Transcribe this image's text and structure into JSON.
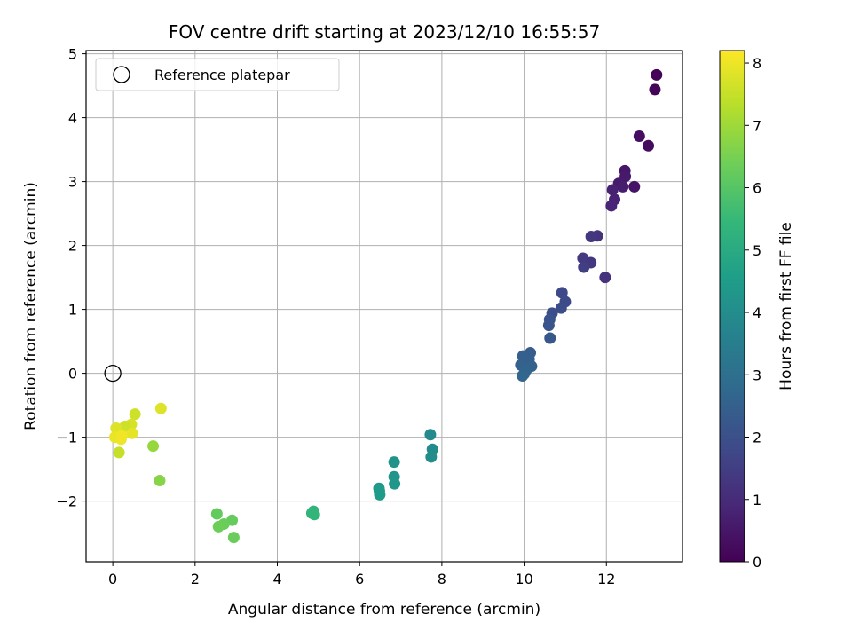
{
  "chart_data": {
    "type": "scatter",
    "title": "FOV centre drift starting at 2023/12/10 16:55:57",
    "xlabel": "Angular distance from reference (arcmin)",
    "ylabel": "Rotation from reference (arcmin)",
    "xlim": [
      -0.65,
      13.85
    ],
    "ylim": [
      -2.95,
      5.05
    ],
    "xticks": [
      0,
      2,
      4,
      6,
      8,
      10,
      12
    ],
    "yticks": [
      -2,
      -1,
      0,
      1,
      2,
      3,
      4,
      5
    ],
    "xtick_labels": [
      "0",
      "2",
      "4",
      "6",
      "8",
      "10",
      "12"
    ],
    "ytick_labels": [
      "−2",
      "−1",
      "0",
      "1",
      "2",
      "3",
      "4",
      "5"
    ],
    "grid": true,
    "legend": {
      "placement": "top-left",
      "entries": [
        "Reference platepar"
      ]
    },
    "reference_point": {
      "x": 0,
      "y": 0,
      "marker": "open-circle"
    },
    "colorbar": {
      "label": "Hours from first FF file",
      "range": [
        0,
        8.2
      ],
      "ticks": [
        0,
        1,
        2,
        3,
        4,
        5,
        6,
        7,
        8
      ],
      "tick_labels": [
        "0",
        "1",
        "2",
        "3",
        "4",
        "5",
        "6",
        "7",
        "8"
      ],
      "colormap": "viridis",
      "stops": [
        "#440154",
        "#482878",
        "#3e4a89",
        "#31688e",
        "#26828e",
        "#1f9e89",
        "#35b779",
        "#6ece58",
        "#b5de2b",
        "#fde725"
      ]
    },
    "points": [
      {
        "x": 13.22,
        "y": 4.67,
        "t": 0.05
      },
      {
        "x": 13.18,
        "y": 4.44,
        "t": 0.1
      },
      {
        "x": 12.8,
        "y": 3.71,
        "t": 0.3
      },
      {
        "x": 13.02,
        "y": 3.56,
        "t": 0.25
      },
      {
        "x": 12.45,
        "y": 3.17,
        "t": 0.5
      },
      {
        "x": 12.46,
        "y": 3.08,
        "t": 0.55
      },
      {
        "x": 12.3,
        "y": 2.97,
        "t": 0.6
      },
      {
        "x": 12.4,
        "y": 2.92,
        "t": 0.65
      },
      {
        "x": 12.68,
        "y": 2.92,
        "t": 0.45
      },
      {
        "x": 12.15,
        "y": 2.87,
        "t": 0.75
      },
      {
        "x": 12.2,
        "y": 2.72,
        "t": 0.8
      },
      {
        "x": 12.12,
        "y": 2.62,
        "t": 0.85
      },
      {
        "x": 11.78,
        "y": 2.15,
        "t": 1.2
      },
      {
        "x": 11.63,
        "y": 2.14,
        "t": 1.3
      },
      {
        "x": 11.43,
        "y": 1.8,
        "t": 1.4
      },
      {
        "x": 11.62,
        "y": 1.73,
        "t": 1.35
      },
      {
        "x": 11.45,
        "y": 1.66,
        "t": 1.5
      },
      {
        "x": 11.97,
        "y": 1.5,
        "t": 1.15
      },
      {
        "x": 10.92,
        "y": 1.26,
        "t": 1.8
      },
      {
        "x": 11.0,
        "y": 1.12,
        "t": 1.85
      },
      {
        "x": 10.9,
        "y": 1.02,
        "t": 1.9
      },
      {
        "x": 10.68,
        "y": 0.94,
        "t": 2.0
      },
      {
        "x": 10.62,
        "y": 0.84,
        "t": 2.1
      },
      {
        "x": 10.6,
        "y": 0.75,
        "t": 2.15
      },
      {
        "x": 10.63,
        "y": 0.55,
        "t": 2.25
      },
      {
        "x": 10.15,
        "y": 0.32,
        "t": 2.4
      },
      {
        "x": 9.97,
        "y": 0.27,
        "t": 2.45
      },
      {
        "x": 10.12,
        "y": 0.22,
        "t": 2.5
      },
      {
        "x": 9.92,
        "y": 0.13,
        "t": 2.55
      },
      {
        "x": 10.18,
        "y": 0.11,
        "t": 2.55
      },
      {
        "x": 10.05,
        "y": 0.05,
        "t": 2.6
      },
      {
        "x": 10.0,
        "y": -0.01,
        "t": 2.65
      },
      {
        "x": 9.96,
        "y": -0.04,
        "t": 2.7
      },
      {
        "x": 7.72,
        "y": -0.96,
        "t": 3.9
      },
      {
        "x": 7.77,
        "y": -1.19,
        "t": 3.95
      },
      {
        "x": 7.74,
        "y": -1.31,
        "t": 4.0
      },
      {
        "x": 6.84,
        "y": -1.39,
        "t": 4.2
      },
      {
        "x": 6.84,
        "y": -1.62,
        "t": 4.25
      },
      {
        "x": 6.85,
        "y": -1.73,
        "t": 4.3
      },
      {
        "x": 6.47,
        "y": -1.8,
        "t": 4.4
      },
      {
        "x": 6.48,
        "y": -1.84,
        "t": 4.45
      },
      {
        "x": 6.49,
        "y": -1.9,
        "t": 4.5
      },
      {
        "x": 4.88,
        "y": -2.16,
        "t": 5.3
      },
      {
        "x": 4.84,
        "y": -2.19,
        "t": 5.35
      },
      {
        "x": 4.9,
        "y": -2.21,
        "t": 5.4
      },
      {
        "x": 2.53,
        "y": -2.2,
        "t": 6.2
      },
      {
        "x": 2.9,
        "y": -2.3,
        "t": 6.25
      },
      {
        "x": 2.7,
        "y": -2.36,
        "t": 6.3
      },
      {
        "x": 2.57,
        "y": -2.4,
        "t": 6.35
      },
      {
        "x": 2.94,
        "y": -2.57,
        "t": 6.3
      },
      {
        "x": 0.98,
        "y": -1.14,
        "t": 6.9
      },
      {
        "x": 1.14,
        "y": -1.68,
        "t": 6.7
      },
      {
        "x": 1.17,
        "y": -0.55,
        "t": 7.8
      },
      {
        "x": 0.54,
        "y": -0.64,
        "t": 7.6
      },
      {
        "x": 0.45,
        "y": -0.8,
        "t": 7.7
      },
      {
        "x": 0.3,
        "y": -0.83,
        "t": 7.6
      },
      {
        "x": 0.08,
        "y": -0.86,
        "t": 7.8
      },
      {
        "x": 0.47,
        "y": -0.94,
        "t": 7.9
      },
      {
        "x": 0.05,
        "y": -1.0,
        "t": 7.95
      },
      {
        "x": 0.2,
        "y": -1.03,
        "t": 8.0
      },
      {
        "x": 0.22,
        "y": -0.98,
        "t": 8.05
      },
      {
        "x": 0.15,
        "y": -1.24,
        "t": 7.5
      }
    ]
  }
}
